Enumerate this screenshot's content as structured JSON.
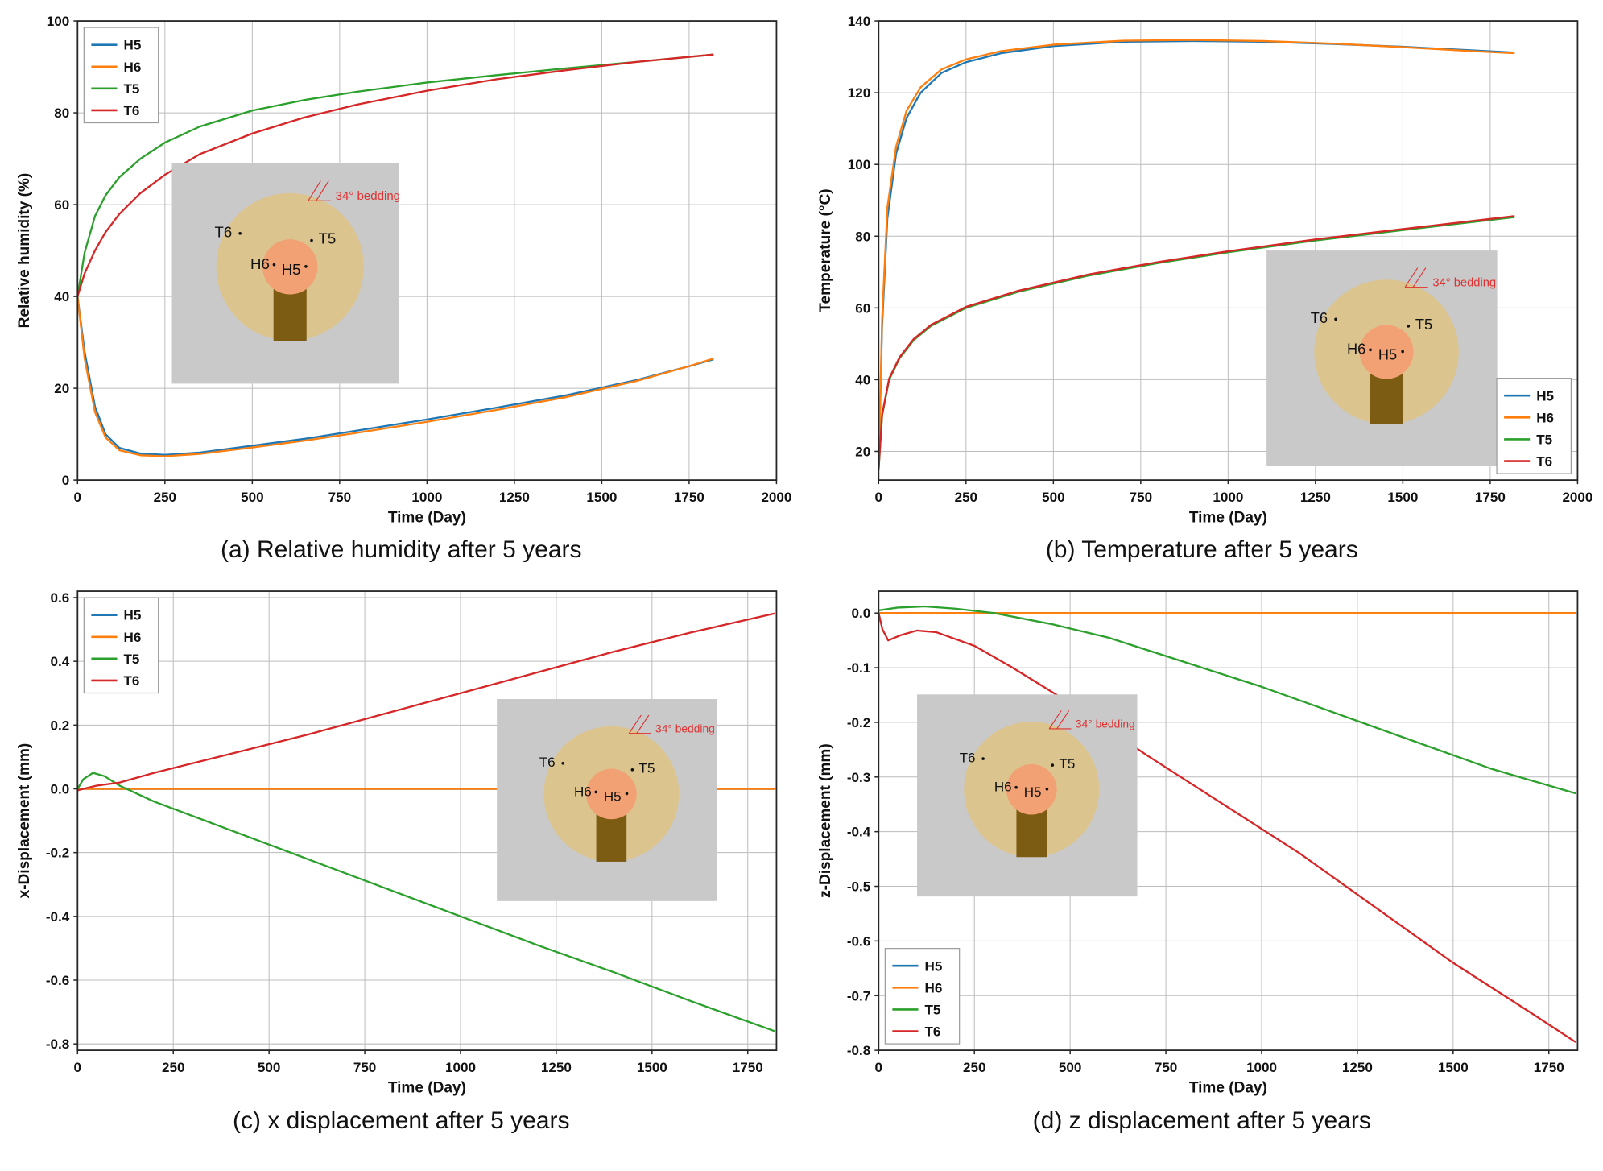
{
  "figure": {
    "background": "#ffffff"
  },
  "colors": {
    "H5": "#1f77b4",
    "H6": "#ff7f0e",
    "T5": "#2ca02c",
    "T6": "#d62728",
    "grid": "#bcbcbc",
    "axis": "#262626",
    "text": "#111111"
  },
  "inset": {
    "labels": {
      "T6": "T6",
      "T5": "T5",
      "H6": "H6",
      "H5": "H5",
      "bedding": "34° bedding"
    },
    "colors": {
      "bg": "#c9c9c9",
      "rock": "#dbc48e",
      "buffer": "#f1a173",
      "tunnel": "#7c5b13",
      "annotation": "#e03030",
      "label": "#111111"
    }
  },
  "chart_data": [
    {
      "id": "relative-humidity",
      "type": "line",
      "caption": "(a) Relative humidity after 5 years",
      "xlabel": "Time (Day)",
      "ylabel": "Relative humidity (%)",
      "xlim": [
        0,
        2000
      ],
      "ylim": [
        0,
        100
      ],
      "xticks": [
        0,
        250,
        500,
        750,
        1000,
        1250,
        1500,
        1750,
        2000
      ],
      "xtick_labels": [
        "0",
        "250",
        "500",
        "750",
        "1000",
        "1250",
        "1500",
        "1750",
        "2000"
      ],
      "yticks": [
        0,
        20,
        40,
        60,
        80,
        100
      ],
      "ytick_labels": [
        "0",
        "20",
        "40",
        "60",
        "80",
        "100"
      ],
      "legend": "top-left",
      "inset_rect": [
        0.135,
        0.31,
        0.325,
        0.48
      ],
      "series": [
        {
          "name": "H5",
          "x": [
            0,
            20,
            50,
            80,
            120,
            180,
            250,
            350,
            500,
            650,
            800,
            1000,
            1200,
            1400,
            1600,
            1750,
            1820
          ],
          "y": [
            40,
            28,
            16,
            10,
            7,
            5.8,
            5.5,
            6,
            7.5,
            9,
            10.8,
            13.2,
            15.8,
            18.5,
            21.8,
            24.8,
            26.3
          ]
        },
        {
          "name": "H6",
          "x": [
            0,
            20,
            50,
            80,
            120,
            180,
            250,
            350,
            500,
            650,
            800,
            1000,
            1200,
            1400,
            1600,
            1750,
            1820
          ],
          "y": [
            40,
            26.5,
            14.8,
            9.3,
            6.5,
            5.4,
            5.2,
            5.7,
            7.1,
            8.6,
            10.3,
            12.7,
            15.3,
            18.1,
            21.6,
            24.8,
            26.5
          ]
        },
        {
          "name": "T5",
          "x": [
            0,
            20,
            50,
            80,
            120,
            180,
            250,
            350,
            500,
            650,
            800,
            1000,
            1200,
            1400,
            1600,
            1820
          ],
          "y": [
            40,
            49.5,
            57.5,
            62,
            66,
            70,
            73.5,
            77,
            80.5,
            82.8,
            84.6,
            86.6,
            88.2,
            89.7,
            91.1,
            92.7
          ]
        },
        {
          "name": "T6",
          "x": [
            0,
            20,
            50,
            80,
            120,
            180,
            250,
            350,
            500,
            650,
            800,
            1000,
            1200,
            1400,
            1600,
            1820
          ],
          "y": [
            40,
            45,
            50,
            54,
            58,
            62.5,
            66.5,
            71,
            75.5,
            79,
            81.8,
            84.8,
            87.3,
            89.3,
            91.1,
            92.7
          ]
        }
      ]
    },
    {
      "id": "temperature",
      "type": "line",
      "caption": "(b) Temperature after 5 years",
      "xlabel": "Time (Day)",
      "ylabel": "Temperature (°C)",
      "xlim": [
        0,
        2000
      ],
      "ylim": [
        12,
        140
      ],
      "xticks": [
        0,
        250,
        500,
        750,
        1000,
        1250,
        1500,
        1750,
        2000
      ],
      "xtick_labels": [
        "0",
        "250",
        "500",
        "750",
        "1000",
        "1250",
        "1500",
        "1750",
        "2000"
      ],
      "yticks": [
        20,
        40,
        60,
        80,
        100,
        120,
        140
      ],
      "ytick_labels": [
        "20",
        "40",
        "60",
        "80",
        "100",
        "120",
        "140"
      ],
      "legend": "bottom-right",
      "inset_rect": [
        0.555,
        0.5,
        0.33,
        0.47
      ],
      "series": [
        {
          "name": "H5",
          "x": [
            0,
            10,
            25,
            50,
            80,
            120,
            180,
            250,
            350,
            500,
            700,
            900,
            1100,
            1300,
            1500,
            1700,
            1820
          ],
          "y": [
            15,
            55,
            85,
            103,
            113,
            120,
            125.5,
            128.5,
            131,
            133,
            134.2,
            134.4,
            134.2,
            133.6,
            132.8,
            131.8,
            131.2
          ]
        },
        {
          "name": "H6",
          "x": [
            0,
            10,
            25,
            50,
            80,
            120,
            180,
            250,
            350,
            500,
            700,
            900,
            1100,
            1300,
            1500,
            1700,
            1820
          ],
          "y": [
            15,
            57,
            88,
            105,
            115,
            121.5,
            126.5,
            129.3,
            131.6,
            133.4,
            134.5,
            134.7,
            134.4,
            133.7,
            132.7,
            131.6,
            131.0
          ]
        },
        {
          "name": "T5",
          "x": [
            0,
            10,
            30,
            60,
            100,
            150,
            250,
            400,
            600,
            800,
            1000,
            1250,
            1500,
            1820
          ],
          "y": [
            15,
            30,
            40,
            46,
            51,
            55,
            60,
            64.5,
            69,
            72.5,
            75.5,
            78.8,
            81.7,
            85.3
          ]
        },
        {
          "name": "T6",
          "x": [
            0,
            10,
            30,
            60,
            100,
            150,
            250,
            400,
            600,
            800,
            1000,
            1250,
            1500,
            1820
          ],
          "y": [
            15,
            30.3,
            40.3,
            46.3,
            51.3,
            55.3,
            60.3,
            64.8,
            69.3,
            72.8,
            75.8,
            79.1,
            82,
            85.6
          ]
        }
      ]
    },
    {
      "id": "x-displacement",
      "type": "line",
      "caption": "(c) x displacement after 5 years",
      "xlabel": "Time (Day)",
      "ylabel": "x-Displacement (mm)",
      "xlim": [
        0,
        1825
      ],
      "ylim": [
        -0.82,
        0.62
      ],
      "xticks": [
        0,
        250,
        500,
        750,
        1000,
        1250,
        1500,
        1750
      ],
      "xtick_labels": [
        "0",
        "250",
        "500",
        "750",
        "1000",
        "1250",
        "1500",
        "1750"
      ],
      "yticks": [
        -0.8,
        -0.6,
        -0.4,
        -0.2,
        0,
        0.2,
        0.4,
        0.6
      ],
      "ytick_labels": [
        "-0.8",
        "-0.6",
        "-0.4",
        "-0.2",
        "0.0",
        "0.2",
        "0.4",
        "0.6"
      ],
      "legend": "top-left",
      "inset_rect": [
        0.6,
        0.235,
        0.315,
        0.44
      ],
      "series": [
        {
          "name": "H5",
          "x": [
            0,
            1820
          ],
          "y": [
            0,
            0
          ]
        },
        {
          "name": "H6",
          "x": [
            0,
            1820
          ],
          "y": [
            0,
            0
          ]
        },
        {
          "name": "T5",
          "x": [
            0,
            15,
            40,
            70,
            110,
            200,
            400,
            600,
            800,
            1000,
            1200,
            1400,
            1600,
            1820
          ],
          "y": [
            0,
            0.03,
            0.05,
            0.04,
            0.01,
            -0.04,
            -0.13,
            -0.22,
            -0.31,
            -0.4,
            -0.49,
            -0.575,
            -0.665,
            -0.76
          ]
        },
        {
          "name": "T6",
          "x": [
            0,
            15,
            50,
            110,
            200,
            400,
            600,
            800,
            1000,
            1200,
            1400,
            1600,
            1820
          ],
          "y": [
            -0.005,
            0,
            0.01,
            0.02,
            0.05,
            0.11,
            0.17,
            0.235,
            0.3,
            0.365,
            0.43,
            0.49,
            0.55
          ]
        }
      ]
    },
    {
      "id": "z-displacement",
      "type": "line",
      "caption": "(d) z displacement after 5 years",
      "xlabel": "Time (Day)",
      "ylabel": "z-Displacement (mm)",
      "xlim": [
        0,
        1825
      ],
      "ylim": [
        -0.8,
        0.04
      ],
      "xticks": [
        0,
        250,
        500,
        750,
        1000,
        1250,
        1500,
        1750
      ],
      "xtick_labels": [
        "0",
        "250",
        "500",
        "750",
        "1000",
        "1250",
        "1500",
        "1750"
      ],
      "yticks": [
        -0.8,
        -0.7,
        -0.6,
        -0.5,
        -0.4,
        -0.3,
        -0.2,
        -0.1,
        0
      ],
      "ytick_labels": [
        "-0.8",
        "-0.7",
        "-0.6",
        "-0.5",
        "-0.4",
        "-0.3",
        "-0.2",
        "-0.1",
        "0.0"
      ],
      "legend": "bottom-left",
      "inset_rect": [
        0.055,
        0.225,
        0.315,
        0.44
      ],
      "series": [
        {
          "name": "H5",
          "x": [
            0,
            1820
          ],
          "y": [
            0,
            0
          ]
        },
        {
          "name": "H6",
          "x": [
            0,
            1820
          ],
          "y": [
            0,
            0
          ]
        },
        {
          "name": "T5",
          "x": [
            0,
            50,
            120,
            200,
            300,
            450,
            600,
            800,
            1000,
            1200,
            1400,
            1600,
            1820
          ],
          "y": [
            0.005,
            0.01,
            0.012,
            0.008,
            0,
            -0.02,
            -0.045,
            -0.09,
            -0.135,
            -0.185,
            -0.235,
            -0.285,
            -0.33
          ]
        },
        {
          "name": "T6",
          "x": [
            0,
            10,
            25,
            60,
            100,
            150,
            250,
            350,
            500,
            700,
            900,
            1100,
            1300,
            1500,
            1700,
            1820
          ],
          "y": [
            0,
            -0.03,
            -0.05,
            -0.04,
            -0.032,
            -0.035,
            -0.06,
            -0.1,
            -0.165,
            -0.26,
            -0.35,
            -0.44,
            -0.54,
            -0.64,
            -0.73,
            -0.785
          ]
        }
      ]
    }
  ]
}
